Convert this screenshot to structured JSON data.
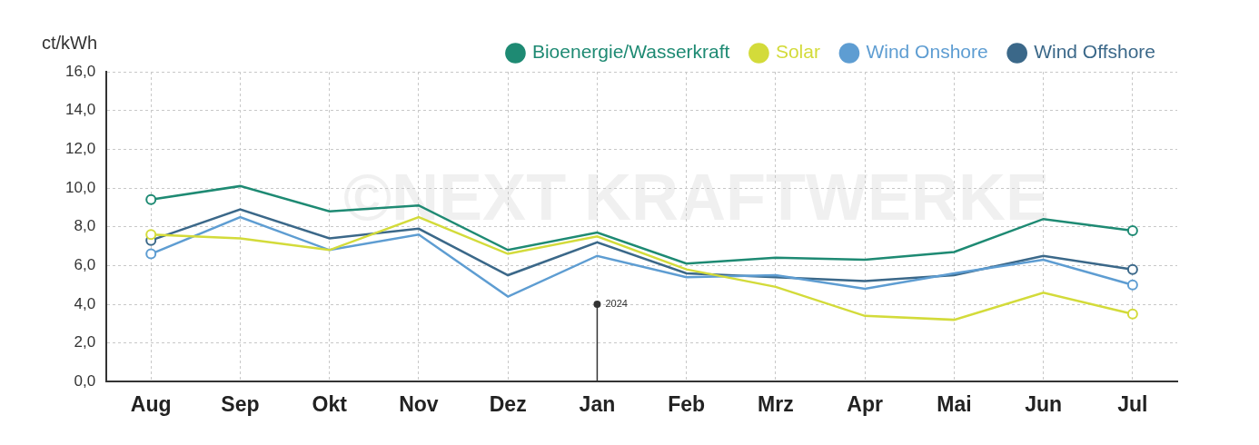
{
  "chart_data": {
    "type": "line",
    "y_label": "ct/kWh",
    "watermark": "©NEXT KRAFTWERKE",
    "categories": [
      "Aug",
      "Sep",
      "Okt",
      "Nov",
      "Dez",
      "Jan",
      "Feb",
      "Mrz",
      "Apr",
      "Mai",
      "Jun",
      "Jul"
    ],
    "series": [
      {
        "name": "Bioenergie/Wasserkraft",
        "color": "#1e8a73",
        "values": [
          9.4,
          10.1,
          8.8,
          9.1,
          6.8,
          7.7,
          6.1,
          6.4,
          6.3,
          6.7,
          8.4,
          7.8
        ]
      },
      {
        "name": "Solar",
        "color": "#d3db3a",
        "values": [
          7.6,
          7.4,
          6.8,
          8.5,
          6.6,
          7.5,
          5.8,
          4.9,
          3.4,
          3.2,
          4.6,
          3.5
        ]
      },
      {
        "name": "Wind Onshore",
        "color": "#5e9dd2",
        "values": [
          6.6,
          8.5,
          6.8,
          7.6,
          4.4,
          6.5,
          5.4,
          5.5,
          4.8,
          5.6,
          6.3,
          5.0
        ]
      },
      {
        "name": "Wind Offshore",
        "color": "#3b6889",
        "values": [
          7.3,
          8.9,
          7.4,
          7.9,
          5.5,
          7.2,
          5.6,
          5.4,
          5.2,
          5.5,
          6.5,
          5.8
        ]
      }
    ],
    "ylim": [
      0,
      16
    ],
    "yticks": [
      {
        "value": 0,
        "label": "0,0"
      },
      {
        "value": 2,
        "label": "2,0"
      },
      {
        "value": 4,
        "label": "4,0"
      },
      {
        "value": 6,
        "label": "6,0"
      },
      {
        "value": 8,
        "label": "8,0"
      },
      {
        "value": 10,
        "label": "10,0"
      },
      {
        "value": 12,
        "label": "12,0"
      },
      {
        "value": 14,
        "label": "14,0"
      },
      {
        "value": 16,
        "label": "16,0"
      }
    ],
    "annotations": [
      {
        "x": "Jan",
        "y": 4,
        "text": "2024"
      }
    ],
    "grid": true,
    "legend": "top-right",
    "marker": "circle"
  }
}
